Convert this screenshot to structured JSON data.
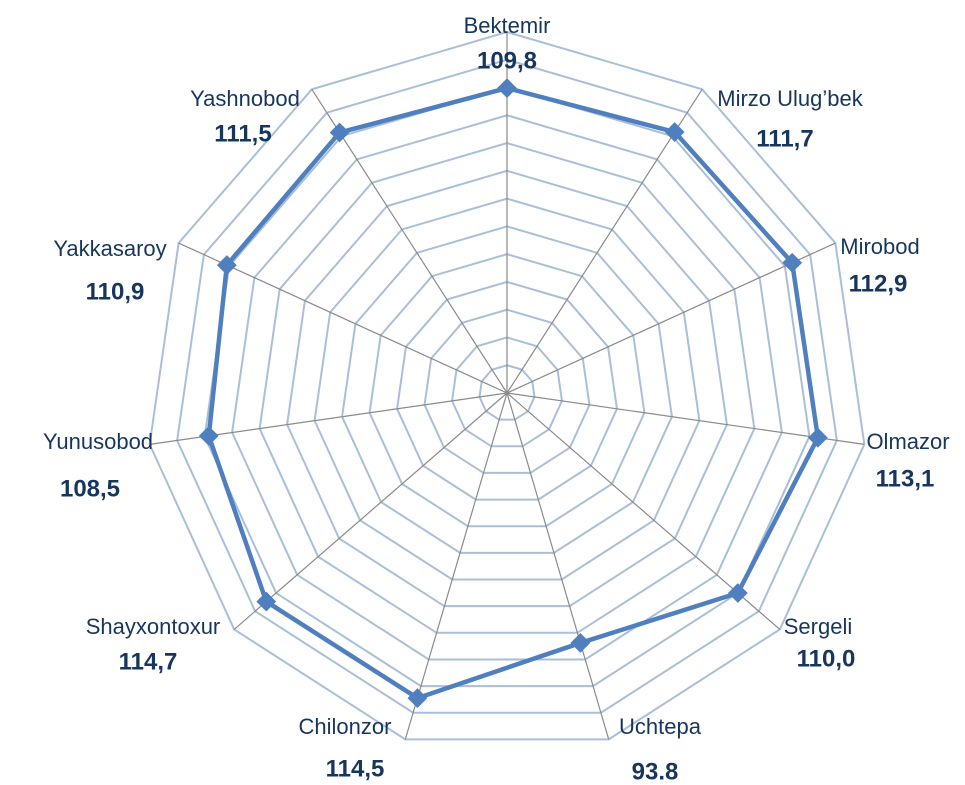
{
  "chart_data": {
    "type": "radar",
    "categories": [
      "Bektemir",
      "Mirzo Ulug’bek",
      "Mirobod",
      "Olmazor",
      "Sergeli",
      "Uchtepa",
      "Chilonzor",
      "Shayxontoxur",
      "Yunusobod",
      "Yakkasaroy",
      "Yashnobod"
    ],
    "values": [
      109.8,
      111.7,
      112.9,
      113.1,
      110.0,
      93.8,
      114.5,
      114.7,
      108.5,
      110.9,
      111.5
    ],
    "value_labels": [
      "109,8",
      "111,7",
      "112,9",
      "113,1",
      "110,0",
      "93.8",
      "114,5",
      "114,7",
      "108,5",
      "110,9",
      "111,5"
    ],
    "color": "#4f7fbf",
    "ylim": [
      0,
      130
    ],
    "yticks": [
      10,
      20,
      30,
      40,
      50,
      60,
      70,
      80,
      90,
      100,
      110,
      120,
      130
    ],
    "grid": true
  }
}
